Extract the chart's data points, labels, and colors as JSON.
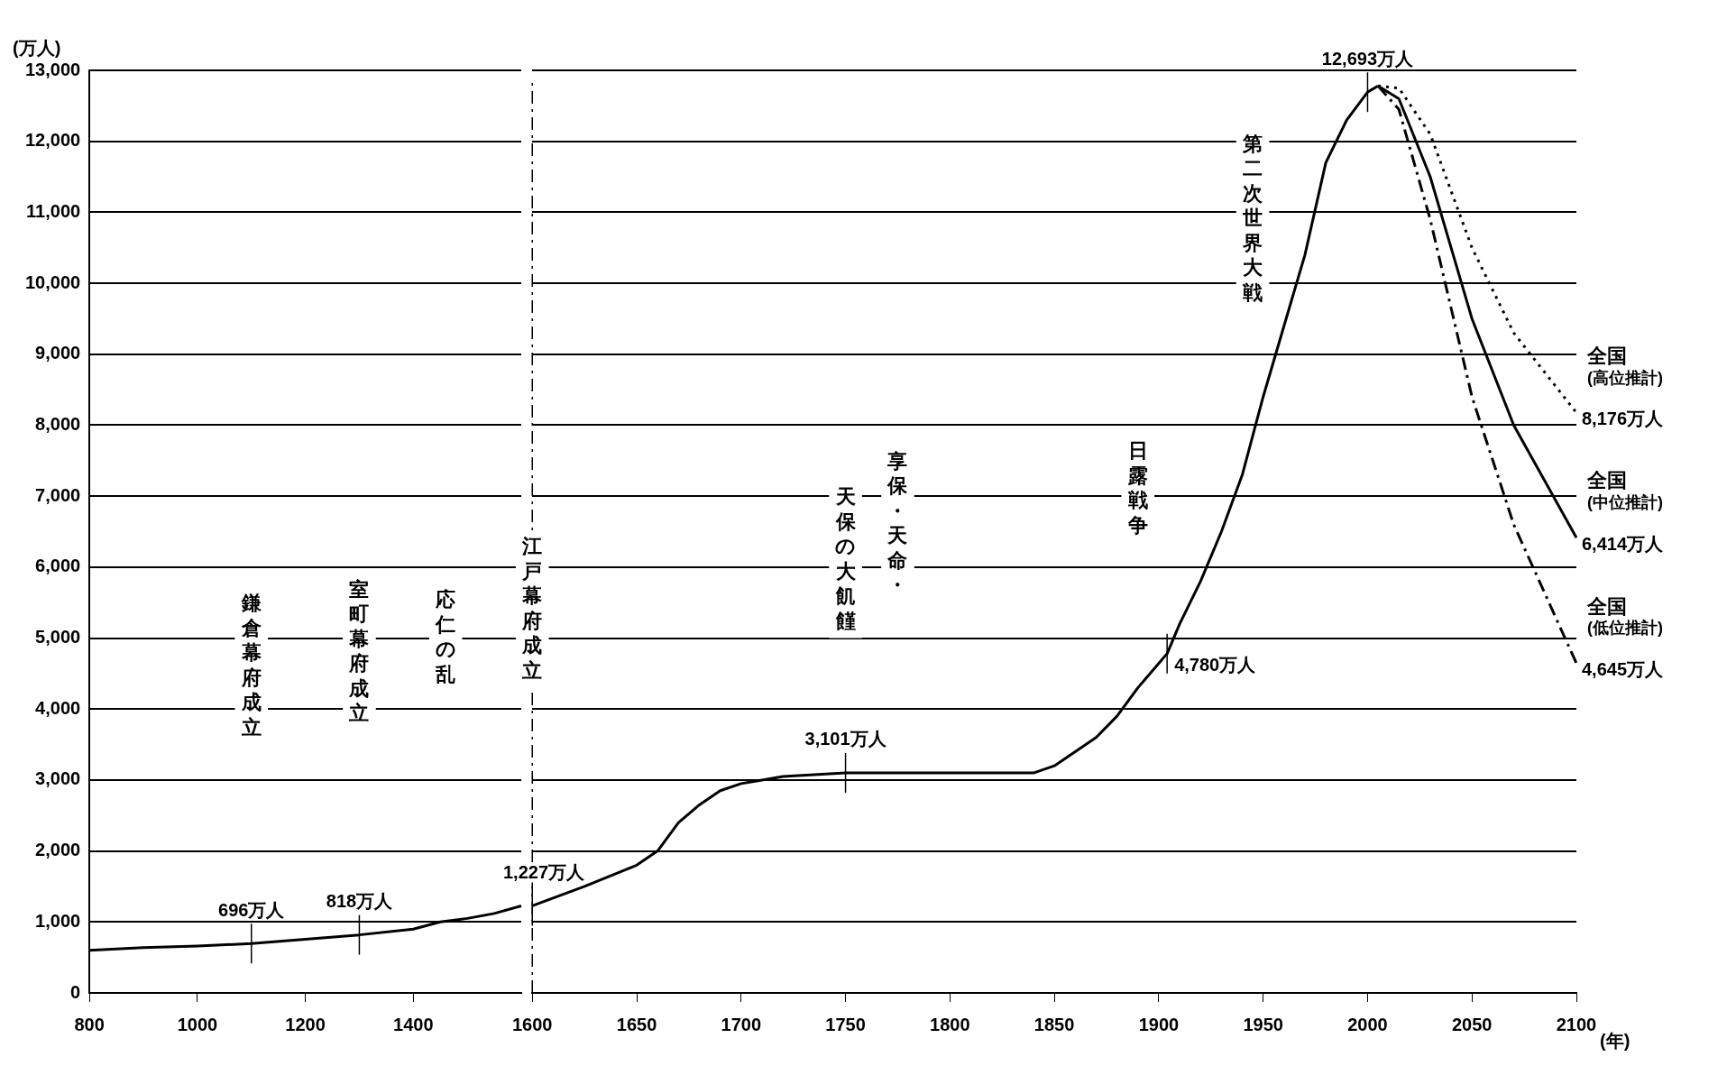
{
  "chart_data": [
    {
      "type": "line",
      "ylabel": "(万人)",
      "xlim": [
        800,
        1600
      ],
      "xticks": [
        800,
        1000,
        1200,
        1400
      ],
      "ylim": [
        0,
        13000
      ],
      "yticks": [
        0,
        {
          "value": 1000,
          "label": "1,000"
        },
        {
          "value": 2000,
          "label": "2,000"
        },
        {
          "value": 3000,
          "label": "3,000"
        },
        {
          "value": 4000,
          "label": "4,000"
        },
        {
          "value": 5000,
          "label": "5,000"
        },
        {
          "value": 6000,
          "label": "6,000"
        },
        {
          "value": 7000,
          "label": "7,000"
        },
        {
          "value": 8000,
          "label": "8,000"
        },
        {
          "value": 9000,
          "label": "9,000"
        },
        {
          "value": 10000,
          "label": "10,000"
        },
        {
          "value": 11000,
          "label": "11,000"
        },
        {
          "value": 12000,
          "label": "12,000"
        },
        {
          "value": 13000,
          "label": "13,000"
        }
      ],
      "grid": "y",
      "legend": false,
      "marker": "none",
      "annotations": [
        "鎌倉幕府成立",
        "室町幕府成立",
        "応仁の乱"
      ],
      "series": [
        {
          "color": "#000000",
          "line_style": "solid",
          "x": [
            800,
            900,
            1000,
            1100,
            1200,
            1300,
            1400,
            1450,
            1500,
            1550,
            1600
          ],
          "values": [
            600,
            640,
            660,
            696,
            757,
            818,
            900,
            1000,
            1050,
            1120,
            1227
          ],
          "value_labels": [
            null,
            null,
            null,
            "696万人",
            null,
            "818万人",
            null,
            null,
            null,
            null,
            null
          ]
        }
      ]
    },
    {
      "type": "line",
      "xlabel": "(年)",
      "xlim": [
        1600,
        2100
      ],
      "xticks": [
        1600,
        1650,
        1700,
        1750,
        1800,
        1850,
        1900,
        1950,
        2000,
        2050,
        2100
      ],
      "ylim": [
        0,
        13000
      ],
      "yticks": [
        0,
        1000,
        2000,
        3000,
        4000,
        5000,
        6000,
        7000,
        8000,
        9000,
        10000,
        11000,
        12000,
        13000
      ],
      "tick_labels": "x",
      "grid": "y",
      "legend": false,
      "marker": "none",
      "ref_lines": [
        {
          "axis": "x",
          "value": 1600,
          "label": "江戸幕府成立",
          "line_style": "dashed",
          "color": "#000000"
        }
      ],
      "annotations": [
        "享保・天命・",
        "天保の大飢饉",
        "日露戦争",
        "第二次世界大戦"
      ],
      "series": [
        {
          "color": "#000000",
          "line_style": "solid",
          "x": [
            1600,
            1625,
            1650,
            1660,
            1670,
            1680,
            1690,
            1700,
            1710,
            1720,
            1750,
            1800,
            1840,
            1850,
            1860,
            1870,
            1880,
            1890,
            1904,
            1910,
            1920,
            1930,
            1940,
            1950,
            1960,
            1970,
            1980,
            1990,
            2000,
            2005
          ],
          "values": [
            1227,
            1500,
            1800,
            2000,
            2400,
            2650,
            2850,
            2950,
            3000,
            3050,
            3101,
            3100,
            3100,
            3200,
            3400,
            3600,
            3900,
            4300,
            4780,
            5200,
            5800,
            6500,
            7300,
            8400,
            9400,
            10400,
            11700,
            12300,
            12693,
            12780
          ],
          "value_labels": [
            "1,227万人",
            null,
            null,
            null,
            null,
            null,
            null,
            null,
            null,
            null,
            "3,101万人",
            null,
            null,
            null,
            null,
            null,
            null,
            null,
            "4,780万人",
            null,
            null,
            null,
            null,
            null,
            null,
            null,
            null,
            null,
            "12,693万人",
            null
          ]
        },
        {
          "name": "全国\n(高位推計)",
          "color": "#000000",
          "line_style": "dotted",
          "x": [
            2005,
            2015,
            2030,
            2050,
            2070,
            2100
          ],
          "values": [
            12780,
            12750,
            12100,
            10500,
            9300,
            8176
          ],
          "value_labels": [
            null,
            null,
            null,
            null,
            null,
            "8,176万人"
          ]
        },
        {
          "name": "全国\n(中位推計)",
          "color": "#000000",
          "line_style": "solid",
          "x": [
            2005,
            2015,
            2030,
            2050,
            2070,
            2100
          ],
          "values": [
            12780,
            12600,
            11500,
            9500,
            8000,
            6414
          ],
          "value_labels": [
            null,
            null,
            null,
            null,
            null,
            "6,414万人"
          ]
        },
        {
          "name": "全国\n(低位推計)",
          "color": "#000000",
          "line_style": "dashed",
          "x": [
            2005,
            2015,
            2030,
            2050,
            2070,
            2100
          ],
          "values": [
            12780,
            12450,
            10900,
            8400,
            6600,
            4645
          ],
          "value_labels": [
            null,
            null,
            null,
            null,
            null,
            "4,645万人"
          ]
        }
      ]
    }
  ]
}
